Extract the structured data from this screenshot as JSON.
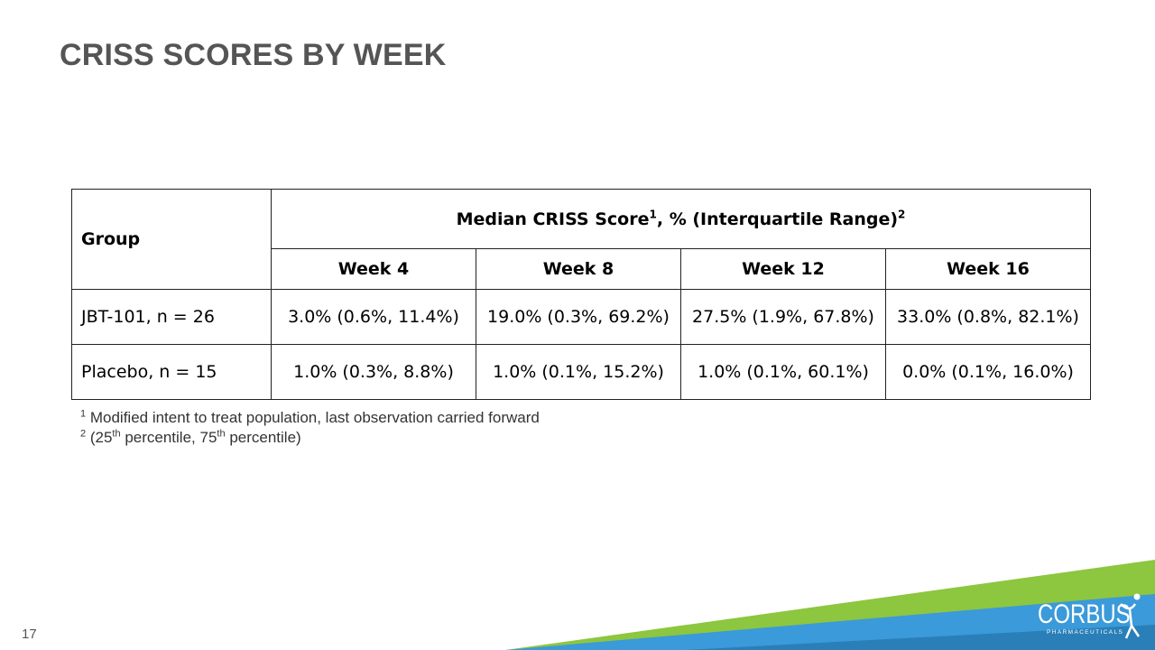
{
  "slide": {
    "title": "CRISS SCORES BY WEEK",
    "page_number": "17"
  },
  "table": {
    "group_header": "Group",
    "main_header": {
      "label": "Median CRISS Score",
      "sup1": "1",
      "mid": ", % (Interquartile Range)",
      "sup2": "2"
    },
    "weeks": [
      "Week 4",
      "Week 8",
      "Week 12",
      "Week 16"
    ],
    "rows": [
      {
        "group": "JBT-101, n = 26",
        "values": [
          "3.0% (0.6%, 11.4%)",
          "19.0% (0.3%, 69.2%)",
          "27.5% (1.9%, 67.8%)",
          "33.0% (0.8%, 82.1%)"
        ]
      },
      {
        "group": "Placebo, n = 15",
        "values": [
          "1.0% (0.3%, 8.8%)",
          "1.0% (0.1%, 15.2%)",
          "1.0% (0.1%, 60.1%)",
          "0.0% (0.1%, 16.0%)"
        ]
      }
    ]
  },
  "footnotes": {
    "n1": {
      "sup": "1",
      "text": " Modified intent to treat population, last observation carried forward"
    },
    "n2": {
      "sup": "2",
      "a": " (25",
      "sup_a": "th",
      "b": " percentile, 75",
      "sup_b": "th",
      "c": " percentile)"
    }
  },
  "logo": {
    "name": "CORBUS",
    "subtitle": "PHARMACEUTICALS",
    "colors": {
      "green": "#8dc63f",
      "blue": "#3b9ad9",
      "teal": "#2a7fb8"
    }
  }
}
